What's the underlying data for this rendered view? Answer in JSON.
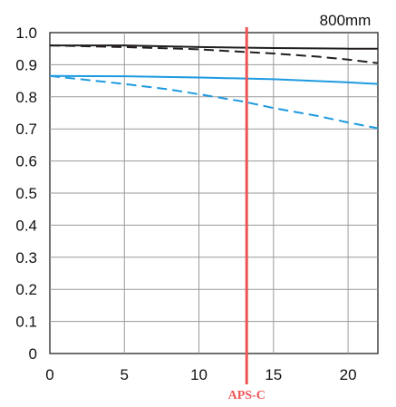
{
  "chart_data": {
    "type": "line",
    "title": "800mm",
    "xlabel": "",
    "ylabel": "",
    "xlim": [
      0,
      22
    ],
    "ylim": [
      0,
      1.0
    ],
    "grid": true,
    "x_ticks": [
      "0",
      "5",
      "10",
      "15",
      "20"
    ],
    "x_tick_values": [
      0,
      5,
      10,
      15,
      20
    ],
    "y_ticks": [
      "0",
      "0.1",
      "0.2",
      "0.3",
      "0.4",
      "0.5",
      "0.6",
      "0.7",
      "0.8",
      "0.9",
      "1.0"
    ],
    "y_tick_values": [
      0,
      0.1,
      0.2,
      0.3,
      0.4,
      0.5,
      0.6,
      0.7,
      0.8,
      0.9,
      1.0
    ],
    "series": [
      {
        "color": "#231f20",
        "dash": "solid",
        "x": [
          0,
          5,
          10,
          15,
          20,
          22
        ],
        "y": [
          0.96,
          0.96,
          0.955,
          0.952,
          0.95,
          0.95
        ]
      },
      {
        "color": "#231f20",
        "dash": "dashed",
        "x": [
          0,
          5,
          10,
          13,
          15,
          18,
          20,
          22
        ],
        "y": [
          0.96,
          0.955,
          0.948,
          0.94,
          0.935,
          0.925,
          0.916,
          0.905
        ]
      },
      {
        "color": "#1e9ae0",
        "dash": "solid",
        "x": [
          0,
          5,
          10,
          15,
          20,
          22
        ],
        "y": [
          0.865,
          0.864,
          0.86,
          0.855,
          0.845,
          0.84
        ]
      },
      {
        "color": "#1e9ae0",
        "dash": "dashed",
        "x": [
          0,
          5,
          8,
          10,
          13,
          15,
          18,
          20,
          22
        ],
        "y": [
          0.865,
          0.84,
          0.823,
          0.808,
          0.785,
          0.765,
          0.74,
          0.72,
          0.702
        ]
      }
    ],
    "annotations": [
      {
        "type": "vline",
        "x": 13.2,
        "label": "APS-C",
        "color": "#ee5555"
      }
    ]
  }
}
